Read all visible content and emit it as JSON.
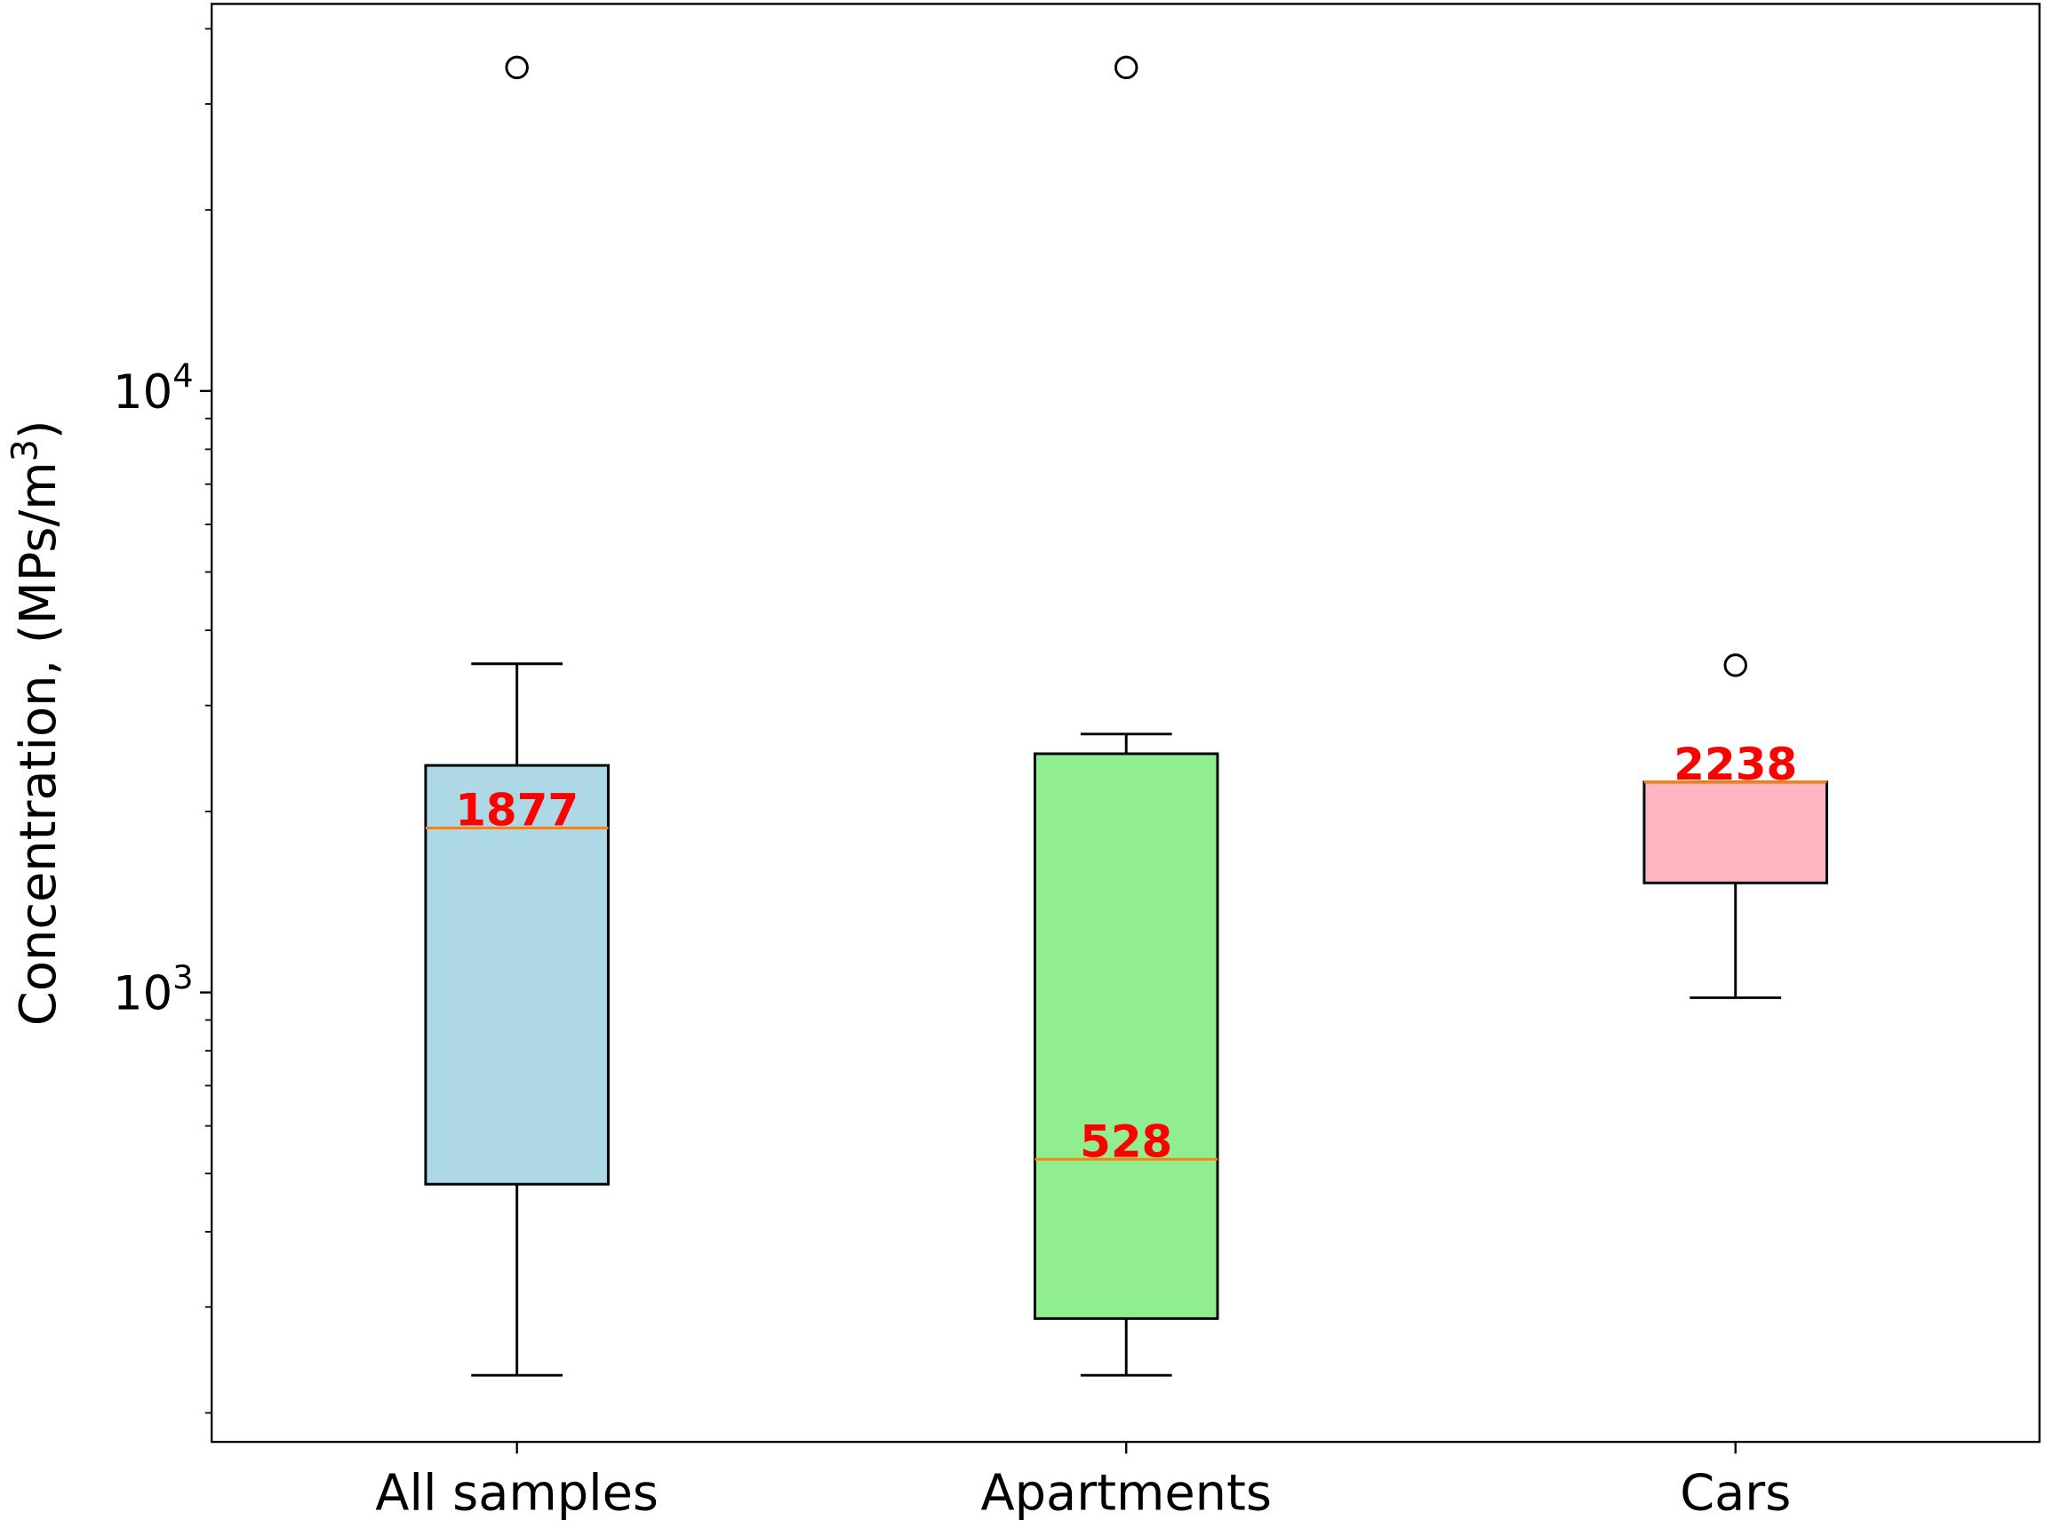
{
  "chart_data": {
    "type": "box",
    "ylabel": "Concentration, (MPs/m",
    "ylabel_sup": "3",
    "ylabel_close": ")",
    "yscale": "log",
    "ylim": [
      179,
      44000
    ],
    "yticks": [
      {
        "base": "10",
        "exp": "3",
        "value": 1000
      },
      {
        "base": "10",
        "exp": "4",
        "value": 10000
      }
    ],
    "grid": false,
    "categories": [
      "All samples",
      "Apartments",
      "Cars"
    ],
    "boxes": [
      {
        "name": "All samples",
        "whisker_low": 231,
        "q1": 480,
        "median": 1877,
        "q3": 2385,
        "whisker_high": 3519,
        "outliers": [
          34500
        ],
        "median_label": "1877",
        "color": "#add8e6"
      },
      {
        "name": "Apartments",
        "whisker_low": 231,
        "q1": 287,
        "median": 528,
        "q3": 2494,
        "whisker_high": 2689,
        "outliers": [
          34500
        ],
        "median_label": "528",
        "color": "#90ee90"
      },
      {
        "name": "Cars",
        "whisker_low": 980,
        "q1": 1521,
        "median": 2238,
        "q3": 2238,
        "whisker_high": 2238,
        "outliers": [
          3500
        ],
        "median_label": "2238",
        "color": "#ffb6c1"
      }
    ],
    "median_line_color": "#ff7f0e",
    "median_label_color": "#ff0000"
  }
}
